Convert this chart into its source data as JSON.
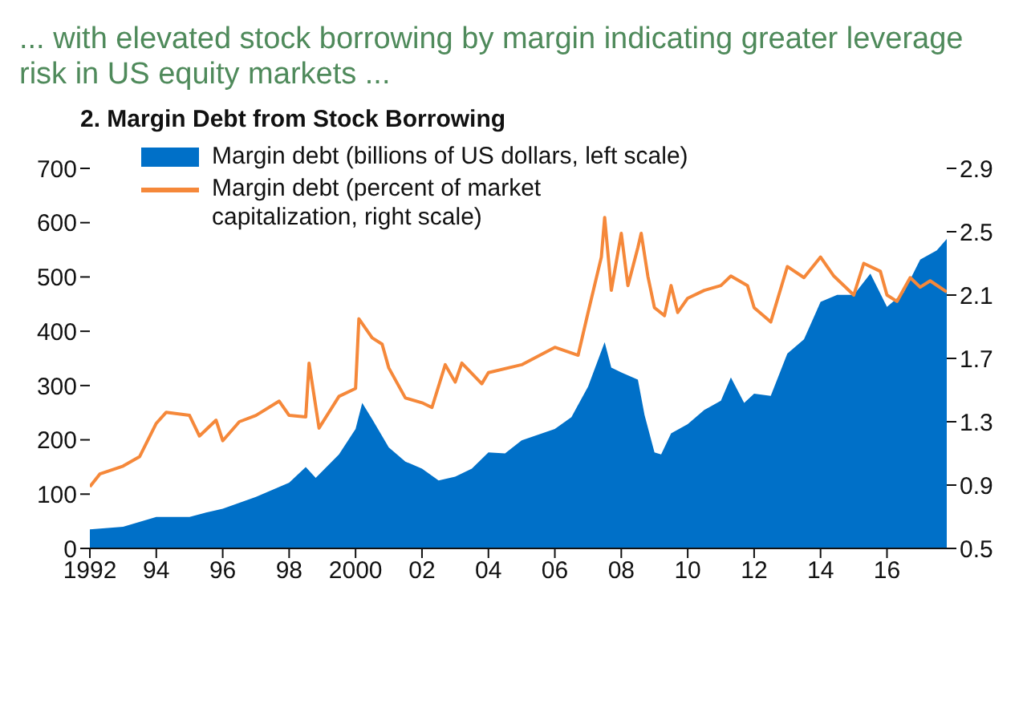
{
  "chart_data": {
    "type": "area",
    "title": "... with elevated stock borrowing by margin indicating greater leverage risk in US equity markets ...",
    "subtitle": "2. Margin Debt from Stock Borrowing",
    "xlim": [
      1992,
      2017.8
    ],
    "xticks": [
      1992,
      {
        "value": 1994,
        "label": "94"
      },
      {
        "value": 1996,
        "label": "96"
      },
      {
        "value": 1998,
        "label": "98"
      },
      2000,
      {
        "value": 2002,
        "label": "02"
      },
      {
        "value": 2004,
        "label": "04"
      },
      {
        "value": 2006,
        "label": "06"
      },
      {
        "value": 2008,
        "label": "08"
      },
      {
        "value": 2010,
        "label": "10"
      },
      {
        "value": 2012,
        "label": "12"
      },
      {
        "value": 2014,
        "label": "14"
      },
      {
        "value": 2016,
        "label": "16"
      }
    ],
    "ylim": [
      0,
      700
    ],
    "yticks": [
      0,
      100,
      200,
      300,
      400,
      500,
      600,
      700
    ],
    "y2lim": [
      0.5,
      2.9
    ],
    "y2ticks": [
      0.5,
      0.9,
      1.3,
      1.7,
      2.1,
      2.5,
      2.9
    ],
    "grid": false,
    "legend": "top left",
    "series": [
      {
        "name": "Margin debt (billions of US dollars, left scale)",
        "color": "#0070c8",
        "x": [
          1992,
          1993,
          1994,
          1995,
          1995.5,
          1996,
          1997,
          1998,
          1998.5,
          1998.8,
          1999.5,
          2000,
          2000.2,
          2000.5,
          2001,
          2001.5,
          2002,
          2002.5,
          2003,
          2003.5,
          2004,
          2004.5,
          2005,
          2006,
          2006.5,
          2007,
          2007.5,
          2007.7,
          2008,
          2008.5,
          2008.7,
          2009,
          2009.2,
          2009.5,
          2010,
          2010.5,
          2011,
          2011.3,
          2011.7,
          2012,
          2012.5,
          2013,
          2013.5,
          2014,
          2014.5,
          2015,
          2015.5,
          2016,
          2016.5,
          2017,
          2017.5,
          2017.8
        ],
        "values": [
          35,
          40,
          58,
          58,
          66,
          73,
          95,
          121,
          150,
          130,
          173,
          220,
          268,
          238,
          186,
          160,
          147,
          125,
          132,
          147,
          177,
          175,
          199,
          220,
          242,
          298,
          380,
          333,
          324,
          311,
          246,
          177,
          173,
          212,
          229,
          255,
          272,
          315,
          268,
          285,
          281,
          359,
          385,
          454,
          467,
          467,
          506,
          445,
          471,
          532,
          549,
          570
        ]
      },
      {
        "name": "Margin debt (percent of market capitalization, right scale)",
        "type": "line",
        "axis": "y2",
        "color": "#f5883a",
        "x": [
          1992,
          1992.3,
          1993,
          1993.5,
          1994,
          1994.3,
          1995,
          1995.3,
          1995.8,
          1996,
          1996.5,
          1997,
          1997.7,
          1998,
          1998.5,
          1998.6,
          1998.9,
          1999.5,
          2000,
          2000.1,
          2000.5,
          2000.8,
          2001,
          2001.5,
          2002,
          2002.3,
          2002.7,
          2003,
          2003.2,
          2003.8,
          2004,
          2005,
          2006,
          2006.7,
          2007,
          2007.4,
          2007.5,
          2007.7,
          2008,
          2008.2,
          2008.5,
          2008.6,
          2008.8,
          2009,
          2009.3,
          2009.5,
          2009.7,
          2010,
          2010.5,
          2011,
          2011.3,
          2011.8,
          2012,
          2012.5,
          2013,
          2013.5,
          2014,
          2014.4,
          2015,
          2015.3,
          2015.8,
          2016,
          2016.3,
          2016.7,
          2017,
          2017.3,
          2017.8
        ],
        "values": [
          0.89,
          0.97,
          1.02,
          1.08,
          1.29,
          1.36,
          1.34,
          1.21,
          1.31,
          1.18,
          1.3,
          1.34,
          1.43,
          1.34,
          1.33,
          1.67,
          1.26,
          1.46,
          1.51,
          1.95,
          1.83,
          1.79,
          1.64,
          1.45,
          1.42,
          1.39,
          1.66,
          1.55,
          1.67,
          1.54,
          1.61,
          1.66,
          1.77,
          1.72,
          1.99,
          2.34,
          2.59,
          2.13,
          2.49,
          2.16,
          2.4,
          2.49,
          2.22,
          2.02,
          1.97,
          2.16,
          1.99,
          2.08,
          2.13,
          2.16,
          2.22,
          2.16,
          2.02,
          1.93,
          2.28,
          2.21,
          2.34,
          2.22,
          2.1,
          2.3,
          2.25,
          2.1,
          2.06,
          2.21,
          2.15,
          2.19,
          2.12
        ]
      }
    ]
  }
}
